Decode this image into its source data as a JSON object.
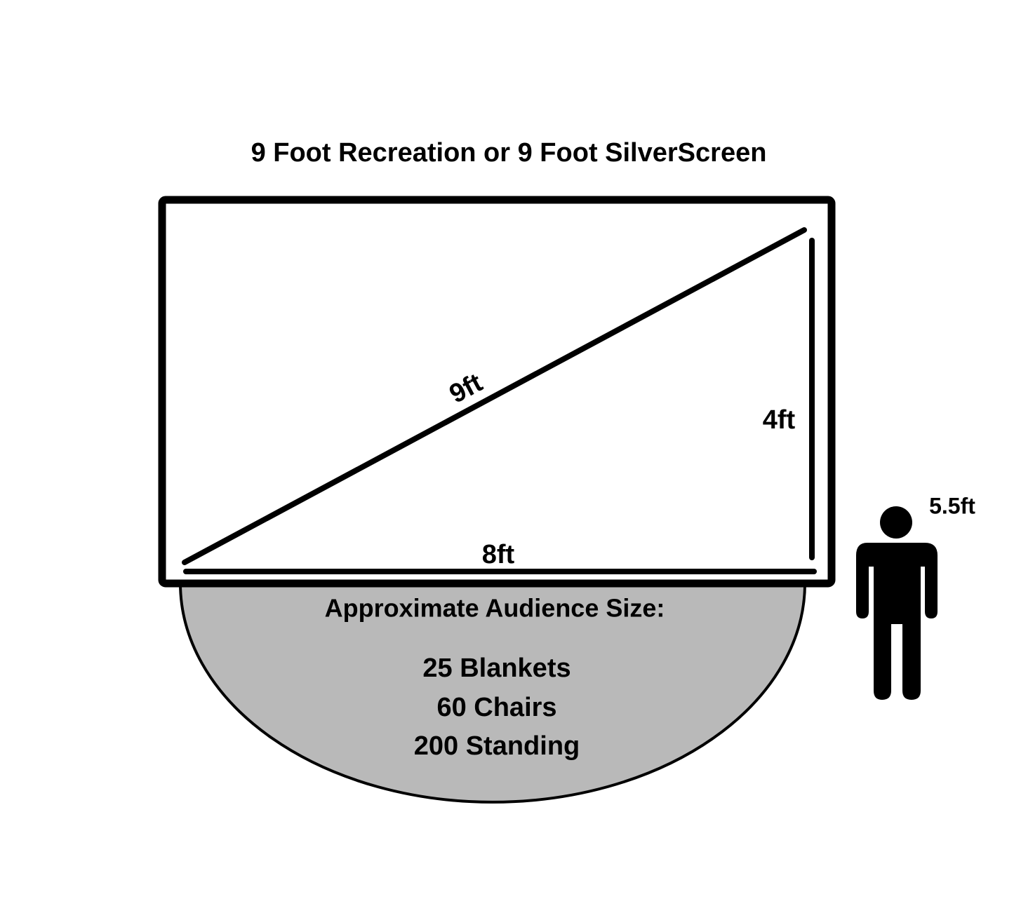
{
  "title": "9 Foot Recreation or 9 Foot SilverScreen",
  "screen": {
    "diagonal_label": "9ft",
    "height_label": "4ft",
    "width_label": "8ft"
  },
  "person": {
    "label": "5.5ft"
  },
  "audience": {
    "heading": "Approximate Audience Size:",
    "lines": [
      "25 Blankets",
      "60 Chairs",
      "200 Standing"
    ]
  }
}
